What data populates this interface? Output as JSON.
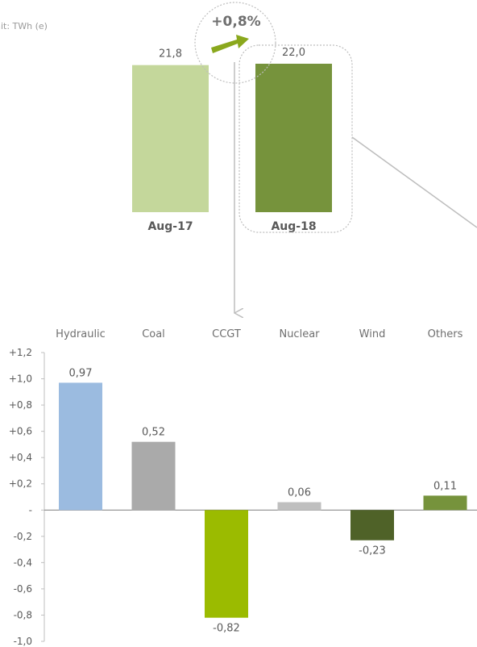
{
  "unit_label": "nit: TWh (e)",
  "change_label": "+0,8%",
  "chart_data": [
    {
      "type": "bar",
      "categories": [
        "Aug-17",
        "Aug-18"
      ],
      "values": [
        21.8,
        22.0
      ],
      "value_labels": [
        "21,8",
        "22,0"
      ],
      "colors": [
        "#c4d79b",
        "#76933c"
      ]
    },
    {
      "type": "bar",
      "categories": [
        "Hydraulic",
        "Coal",
        "CCGT",
        "Nuclear",
        "Wind",
        "Others"
      ],
      "values": [
        0.97,
        0.52,
        -0.82,
        0.06,
        -0.23,
        0.11
      ],
      "value_labels": [
        "0,97",
        "0,52",
        "-0,82",
        "0,06",
        "-0,23",
        "0,11"
      ],
      "colors": [
        "#9bbbe0",
        "#aaaaaa",
        "#9bbb00",
        "#bfbfbf",
        "#4f6228",
        "#76933c"
      ],
      "ylim": [
        -1.0,
        1.2
      ],
      "y_ticks": [
        1.2,
        1.0,
        0.8,
        0.6,
        0.4,
        0.2,
        0,
        -0.2,
        -0.4,
        -0.6,
        -0.8,
        -1.0
      ],
      "y_tick_labels": [
        "+1,2",
        "+1,0",
        "+0,8",
        "+0,6",
        "+0,4",
        "+0,2",
        "-",
        "-0,2",
        "-0,4",
        "-0,6",
        "-0,8",
        "-1,0"
      ],
      "grid": false
    }
  ]
}
